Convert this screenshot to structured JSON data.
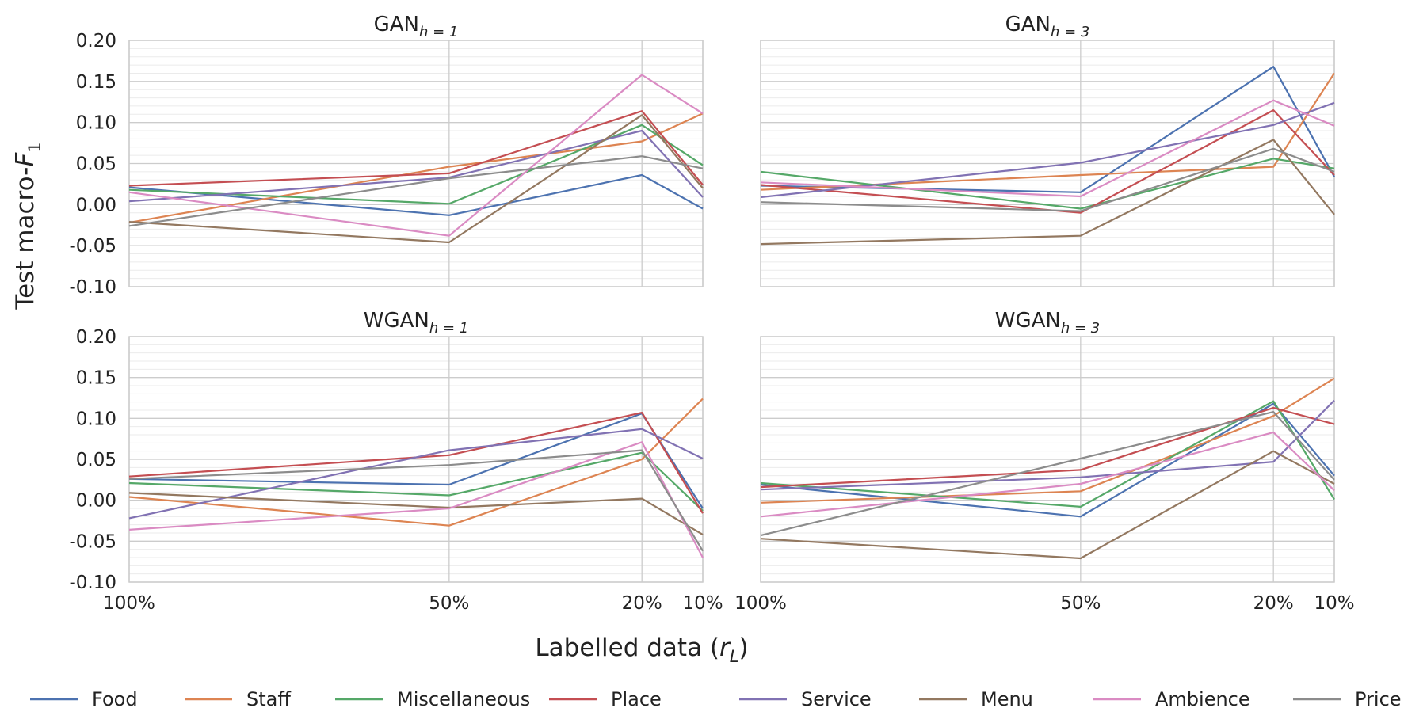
{
  "figure": {
    "ylabel_main": "Test macro-",
    "ylabel_var": "F",
    "ylabel_sub": "1",
    "xlabel_main": "Labelled data (",
    "xlabel_var": "r",
    "xlabel_sub": "L",
    "xlabel_end": ")"
  },
  "colors": {
    "Food": "#4c72b0",
    "Staff": "#dd8452",
    "Miscellaneous": "#55a868",
    "Place": "#c44e52",
    "Service": "#8172b3",
    "Menu": "#937860",
    "Ambience": "#da8bc3",
    "Price": "#8c8c8c"
  },
  "legend": [
    "Food",
    "Staff",
    "Miscellaneous",
    "Place",
    "Service",
    "Menu",
    "Ambience",
    "Price"
  ],
  "chart_data": [
    {
      "type": "line",
      "title_main": "GAN",
      "title_sub": "h = 1",
      "x": [
        "100%",
        "50%",
        "20%",
        "10%"
      ],
      "ylim": [
        -0.1,
        0.2
      ],
      "yticks": [
        "0.20",
        "0.15",
        "0.10",
        "0.05",
        "0.00",
        "-0.05",
        "-0.10"
      ],
      "grid": true,
      "series": [
        {
          "name": "Food",
          "values": [
            0.021,
            -0.013,
            0.036,
            -0.005
          ]
        },
        {
          "name": "Staff",
          "values": [
            -0.022,
            0.046,
            0.077,
            0.111
          ]
        },
        {
          "name": "Miscellaneous",
          "values": [
            0.018,
            0.001,
            0.097,
            0.048
          ]
        },
        {
          "name": "Place",
          "values": [
            0.023,
            0.038,
            0.114,
            0.024
          ]
        },
        {
          "name": "Service",
          "values": [
            0.004,
            0.033,
            0.09,
            0.009
          ]
        },
        {
          "name": "Menu",
          "values": [
            -0.021,
            -0.046,
            0.109,
            0.02
          ]
        },
        {
          "name": "Ambience",
          "values": [
            0.015,
            -0.038,
            0.158,
            0.111
          ]
        },
        {
          "name": "Price",
          "values": [
            -0.026,
            0.032,
            0.059,
            0.044
          ]
        }
      ]
    },
    {
      "type": "line",
      "title_main": "GAN",
      "title_sub": "h = 3",
      "x": [
        "100%",
        "50%",
        "20%",
        "10%"
      ],
      "ylim": [
        -0.1,
        0.2
      ],
      "grid": true,
      "series": [
        {
          "name": "Food",
          "values": [
            0.023,
            0.015,
            0.168,
            0.034
          ]
        },
        {
          "name": "Staff",
          "values": [
            0.018,
            0.036,
            0.046,
            0.16
          ]
        },
        {
          "name": "Miscellaneous",
          "values": [
            0.04,
            -0.005,
            0.056,
            0.044
          ]
        },
        {
          "name": "Place",
          "values": [
            0.024,
            -0.01,
            0.115,
            0.036
          ]
        },
        {
          "name": "Service",
          "values": [
            0.009,
            0.051,
            0.097,
            0.124
          ]
        },
        {
          "name": "Menu",
          "values": [
            -0.048,
            -0.038,
            0.079,
            -0.012
          ]
        },
        {
          "name": "Ambience",
          "values": [
            0.027,
            0.01,
            0.127,
            0.096
          ]
        },
        {
          "name": "Price",
          "values": [
            0.003,
            -0.008,
            0.068,
            0.04
          ]
        }
      ]
    },
    {
      "type": "line",
      "title_main": "WGAN",
      "title_sub": "h = 1",
      "x": [
        "100%",
        "50%",
        "20%",
        "10%"
      ],
      "ylim": [
        -0.1,
        0.2
      ],
      "yticks": [
        "0.20",
        "0.15",
        "0.10",
        "0.05",
        "0.00",
        "-0.05",
        "-0.10"
      ],
      "xticks": [
        "100%",
        "50%",
        "20%",
        "10%"
      ],
      "grid": true,
      "series": [
        {
          "name": "Food",
          "values": [
            0.026,
            0.019,
            0.106,
            -0.01
          ]
        },
        {
          "name": "Staff",
          "values": [
            0.004,
            -0.031,
            0.05,
            0.124
          ]
        },
        {
          "name": "Miscellaneous",
          "values": [
            0.021,
            0.006,
            0.058,
            -0.013
          ]
        },
        {
          "name": "Place",
          "values": [
            0.029,
            0.055,
            0.107,
            -0.016
          ]
        },
        {
          "name": "Service",
          "values": [
            -0.022,
            0.061,
            0.087,
            0.051
          ]
        },
        {
          "name": "Menu",
          "values": [
            0.009,
            -0.009,
            0.002,
            -0.042
          ]
        },
        {
          "name": "Ambience",
          "values": [
            -0.036,
            -0.01,
            0.071,
            -0.07
          ]
        },
        {
          "name": "Price",
          "values": [
            0.026,
            0.043,
            0.061,
            -0.062
          ]
        }
      ]
    },
    {
      "type": "line",
      "title_main": "WGAN",
      "title_sub": "h = 3",
      "x": [
        "100%",
        "50%",
        "20%",
        "10%"
      ],
      "ylim": [
        -0.1,
        0.2
      ],
      "xticks": [
        "100%",
        "50%",
        "20%",
        "10%"
      ],
      "grid": true,
      "series": [
        {
          "name": "Food",
          "values": [
            0.019,
            -0.02,
            0.118,
            0.03
          ]
        },
        {
          "name": "Staff",
          "values": [
            -0.003,
            0.011,
            0.103,
            0.149
          ]
        },
        {
          "name": "Miscellaneous",
          "values": [
            0.021,
            -0.008,
            0.121,
            0.001
          ]
        },
        {
          "name": "Place",
          "values": [
            0.016,
            0.037,
            0.113,
            0.093
          ]
        },
        {
          "name": "Service",
          "values": [
            0.013,
            0.028,
            0.047,
            0.122
          ]
        },
        {
          "name": "Menu",
          "values": [
            -0.047,
            -0.071,
            0.06,
            0.02
          ]
        },
        {
          "name": "Ambience",
          "values": [
            -0.02,
            0.02,
            0.083,
            0.012
          ]
        },
        {
          "name": "Price",
          "values": [
            -0.043,
            0.051,
            0.108,
            0.025
          ]
        }
      ]
    }
  ]
}
